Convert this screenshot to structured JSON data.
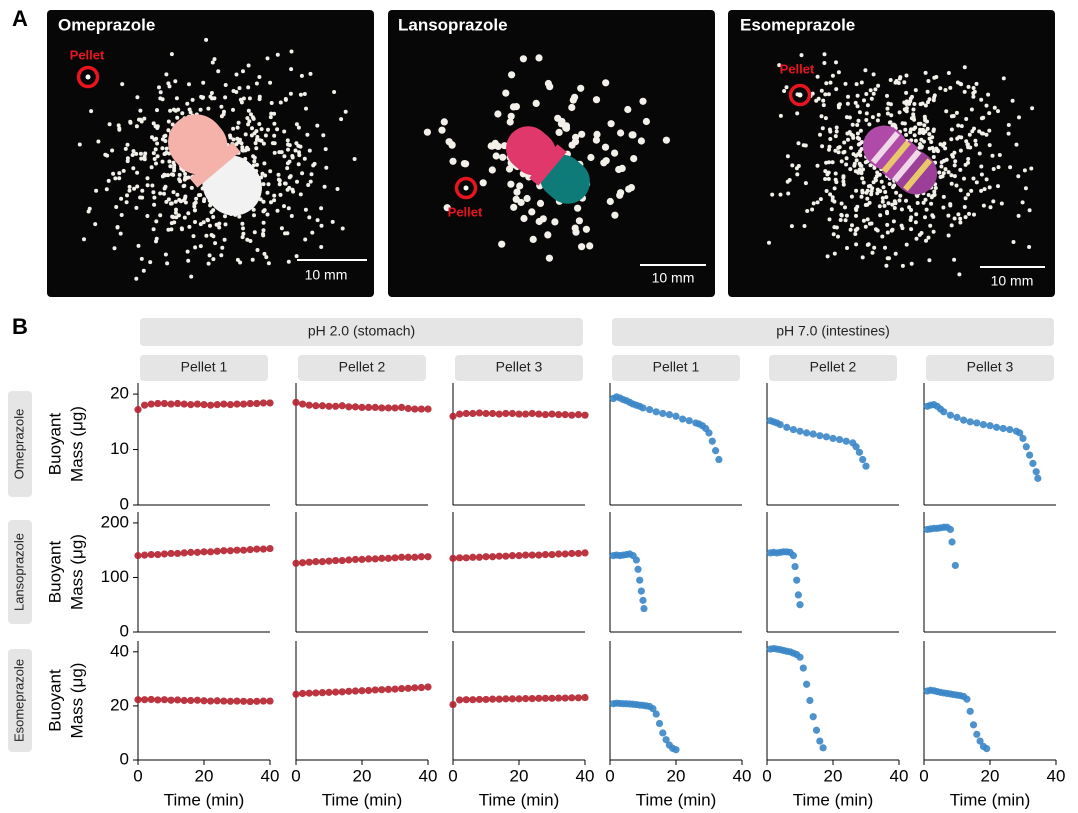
{
  "panel_labels": [
    "A",
    "B"
  ],
  "photos": [
    {
      "title": "Omeprazole",
      "marker": "Pellet",
      "scale_bar": "10 mm"
    },
    {
      "title": "Lansoprazole",
      "marker": "Pellet",
      "scale_bar": "10 mm"
    },
    {
      "title": "Esomeprazole",
      "marker": "Pellet",
      "scale_bar": "10 mm"
    }
  ],
  "conditions": [
    {
      "label": "pH 2.0 (stomach)",
      "pellets": [
        "Pellet 1",
        "Pellet 2",
        "Pellet 3"
      ]
    },
    {
      "label": "pH 7.0 (intestines)",
      "pellets": [
        "Pellet 1",
        "Pellet 2",
        "Pellet 3"
      ]
    }
  ],
  "drugs": [
    "Omeprazole",
    "Lansoprazole",
    "Esomeprazole"
  ],
  "chart_data": [
    {
      "type": "scatter",
      "xlim": [
        0,
        40
      ],
      "ylim": [
        0,
        22
      ],
      "yticks": [
        0,
        10,
        20
      ],
      "ylabel": [
        "Buoyant",
        "Mass (μg)"
      ],
      "series": [
        {
          "color": "#b5202e",
          "x": [
            0,
            2,
            4,
            6,
            8,
            10,
            12,
            14,
            16,
            18,
            20,
            22,
            24,
            26,
            28,
            30,
            32,
            34,
            36,
            38,
            40
          ],
          "values": [
            17.2,
            18.0,
            18.2,
            18.3,
            18.3,
            18.2,
            18.3,
            18.2,
            18.1,
            18.2,
            18.1,
            18.0,
            18.1,
            18.2,
            18.1,
            18.2,
            18.2,
            18.3,
            18.3,
            18.4,
            18.4
          ]
        }
      ]
    },
    {
      "type": "scatter",
      "xlim": [
        0,
        40
      ],
      "ylim": [
        0,
        22
      ],
      "series": [
        {
          "color": "#b5202e",
          "x": [
            0,
            2,
            4,
            6,
            8,
            10,
            12,
            14,
            16,
            18,
            20,
            22,
            24,
            26,
            28,
            30,
            32,
            34,
            36,
            38,
            40
          ],
          "values": [
            18.5,
            18.2,
            18.0,
            17.9,
            17.9,
            17.8,
            17.8,
            17.9,
            17.7,
            17.7,
            17.6,
            17.6,
            17.6,
            17.5,
            17.5,
            17.5,
            17.6,
            17.4,
            17.3,
            17.3,
            17.3
          ]
        }
      ]
    },
    {
      "type": "scatter",
      "xlim": [
        0,
        40
      ],
      "ylim": [
        0,
        22
      ],
      "series": [
        {
          "color": "#b5202e",
          "x": [
            0,
            2,
            4,
            6,
            8,
            10,
            12,
            14,
            16,
            18,
            20,
            22,
            24,
            26,
            28,
            30,
            32,
            34,
            36,
            38,
            40
          ],
          "values": [
            16.0,
            16.4,
            16.5,
            16.5,
            16.6,
            16.5,
            16.5,
            16.4,
            16.5,
            16.5,
            16.4,
            16.4,
            16.5,
            16.4,
            16.3,
            16.4,
            16.3,
            16.3,
            16.2,
            16.3,
            16.2
          ]
        }
      ]
    },
    {
      "type": "scatter",
      "xlim": [
        0,
        40
      ],
      "ylim": [
        0,
        22
      ],
      "series": [
        {
          "color": "#3a86c8",
          "x": [
            1,
            2,
            3,
            4,
            5,
            6,
            7,
            8,
            9,
            10,
            12,
            14,
            16,
            18,
            20,
            22,
            24,
            26,
            27,
            28,
            29,
            30,
            31,
            32,
            33
          ],
          "values": [
            19.2,
            19.5,
            19.3,
            19.0,
            18.8,
            18.5,
            18.2,
            18.0,
            17.8,
            17.5,
            17.2,
            16.8,
            16.5,
            16.3,
            16.0,
            15.5,
            15.2,
            14.8,
            14.6,
            14.3,
            13.8,
            13.0,
            11.5,
            9.8,
            8.2
          ]
        }
      ]
    },
    {
      "type": "scatter",
      "xlim": [
        0,
        40
      ],
      "ylim": [
        0,
        22
      ],
      "series": [
        {
          "color": "#3a86c8",
          "x": [
            1,
            2,
            3,
            4,
            6,
            8,
            10,
            12,
            14,
            16,
            18,
            20,
            22,
            24,
            26,
            27,
            28,
            29,
            30
          ],
          "values": [
            15.2,
            15.0,
            14.8,
            14.5,
            14.0,
            13.6,
            13.3,
            13.0,
            12.8,
            12.5,
            12.3,
            12.0,
            11.8,
            11.5,
            11.2,
            10.5,
            9.5,
            8.2,
            7.0
          ]
        }
      ]
    },
    {
      "type": "scatter",
      "xlim": [
        0,
        40
      ],
      "ylim": [
        0,
        22
      ],
      "series": [
        {
          "color": "#3a86c8",
          "x": [
            1,
            2,
            3,
            4,
            5,
            6,
            8,
            10,
            12,
            14,
            16,
            18,
            20,
            22,
            24,
            26,
            28,
            29,
            30,
            31,
            32,
            33,
            34,
            34.5
          ],
          "values": [
            17.8,
            18.0,
            18.1,
            17.8,
            17.3,
            16.8,
            16.2,
            15.8,
            15.3,
            15.0,
            14.8,
            14.5,
            14.3,
            14.0,
            13.8,
            13.6,
            13.3,
            13.0,
            12.0,
            10.5,
            9.0,
            7.5,
            6.0,
            4.8
          ]
        }
      ]
    },
    {
      "type": "scatter",
      "xlim": [
        0,
        40
      ],
      "ylim": [
        0,
        220
      ],
      "yticks": [
        0,
        100,
        200
      ],
      "ylabel": [
        "Buoyant",
        "Mass (μg)"
      ],
      "series": [
        {
          "color": "#b5202e",
          "x": [
            0,
            2,
            4,
            6,
            8,
            10,
            12,
            14,
            16,
            18,
            20,
            22,
            24,
            26,
            28,
            30,
            32,
            34,
            36,
            38,
            40
          ],
          "values": [
            140,
            141,
            142,
            142,
            143,
            144,
            144,
            145,
            146,
            146,
            147,
            147,
            148,
            149,
            149,
            150,
            150,
            151,
            152,
            152,
            153
          ]
        }
      ]
    },
    {
      "type": "scatter",
      "xlim": [
        0,
        40
      ],
      "ylim": [
        0,
        220
      ],
      "series": [
        {
          "color": "#b5202e",
          "x": [
            0,
            2,
            4,
            6,
            8,
            10,
            12,
            14,
            16,
            18,
            20,
            22,
            24,
            26,
            28,
            30,
            32,
            34,
            36,
            38,
            40
          ],
          "values": [
            126,
            127,
            128,
            129,
            129,
            130,
            131,
            131,
            132,
            133,
            133,
            134,
            134,
            135,
            135,
            136,
            137,
            137,
            137,
            138,
            138
          ]
        }
      ]
    },
    {
      "type": "scatter",
      "xlim": [
        0,
        40
      ],
      "ylim": [
        0,
        220
      ],
      "series": [
        {
          "color": "#b5202e",
          "x": [
            0,
            2,
            4,
            6,
            8,
            10,
            12,
            14,
            16,
            18,
            20,
            22,
            24,
            26,
            28,
            30,
            32,
            34,
            36,
            38,
            40
          ],
          "values": [
            135,
            136,
            136,
            137,
            137,
            138,
            138,
            139,
            139,
            140,
            140,
            141,
            141,
            141,
            142,
            142,
            143,
            143,
            144,
            144,
            145
          ]
        }
      ]
    },
    {
      "type": "scatter",
      "xlim": [
        0,
        40
      ],
      "ylim": [
        0,
        220
      ],
      "series": [
        {
          "color": "#3a86c8",
          "x": [
            1,
            2,
            3,
            4,
            5,
            6,
            7,
            8,
            8.5,
            9,
            9.5,
            10,
            10.3
          ],
          "values": [
            140,
            141,
            140,
            141,
            142,
            143,
            140,
            132,
            115,
            95,
            75,
            58,
            43
          ]
        }
      ]
    },
    {
      "type": "scatter",
      "xlim": [
        0,
        40
      ],
      "ylim": [
        0,
        220
      ],
      "series": [
        {
          "color": "#3a86c8",
          "x": [
            1,
            2,
            3,
            4,
            5,
            6,
            7,
            8,
            8.5,
            9,
            9.5,
            10
          ],
          "values": [
            145,
            146,
            145,
            146,
            147,
            147,
            146,
            140,
            120,
            95,
            68,
            50
          ]
        }
      ]
    },
    {
      "type": "scatter",
      "xlim": [
        0,
        40
      ],
      "ylim": [
        0,
        220
      ],
      "series": [
        {
          "color": "#3a86c8",
          "x": [
            1,
            2,
            3,
            4,
            5,
            6,
            7,
            8,
            8.5,
            9.5
          ],
          "values": [
            188,
            189,
            190,
            190,
            191,
            192,
            192,
            188,
            165,
            122
          ]
        }
      ]
    },
    {
      "type": "scatter",
      "xlim": [
        0,
        40
      ],
      "ylim": [
        0,
        44
      ],
      "yticks": [
        0,
        20,
        40
      ],
      "xticks": [
        0,
        20,
        40
      ],
      "ylabel": [
        "Buoyant",
        "Mass (μg)"
      ],
      "xlabel": "Time (min)",
      "series": [
        {
          "color": "#b5202e",
          "x": [
            0,
            2,
            4,
            6,
            8,
            10,
            12,
            14,
            16,
            18,
            20,
            22,
            24,
            26,
            28,
            30,
            32,
            34,
            36,
            38,
            40
          ],
          "values": [
            22.3,
            22.3,
            22.4,
            22.2,
            22.3,
            22.1,
            22.2,
            22.0,
            22.0,
            22.1,
            21.9,
            21.8,
            21.9,
            21.8,
            21.7,
            21.8,
            21.7,
            21.6,
            21.7,
            21.8,
            21.8
          ]
        }
      ]
    },
    {
      "type": "scatter",
      "xlim": [
        0,
        40
      ],
      "ylim": [
        0,
        44
      ],
      "xticks": [
        0,
        20,
        40
      ],
      "xlabel": "Time (min)",
      "series": [
        {
          "color": "#b5202e",
          "x": [
            0,
            2,
            4,
            6,
            8,
            10,
            12,
            14,
            16,
            18,
            20,
            22,
            24,
            26,
            28,
            30,
            32,
            34,
            36,
            38,
            40
          ],
          "values": [
            24.3,
            24.6,
            24.7,
            24.8,
            24.9,
            25.0,
            25.1,
            25.2,
            25.4,
            25.5,
            25.6,
            25.7,
            25.9,
            26.0,
            26.1,
            26.2,
            26.4,
            26.5,
            26.7,
            26.8,
            27.0
          ]
        }
      ]
    },
    {
      "type": "scatter",
      "xlim": [
        0,
        40
      ],
      "ylim": [
        0,
        44
      ],
      "xticks": [
        0,
        20,
        40
      ],
      "xlabel": "Time (min)",
      "series": [
        {
          "color": "#b5202e",
          "x": [
            0,
            2,
            4,
            6,
            8,
            10,
            12,
            14,
            16,
            18,
            20,
            22,
            24,
            26,
            28,
            30,
            32,
            34,
            36,
            38,
            40
          ],
          "values": [
            20.5,
            22.2,
            22.3,
            22.3,
            22.4,
            22.4,
            22.5,
            22.5,
            22.6,
            22.6,
            22.6,
            22.7,
            22.7,
            22.8,
            22.8,
            22.8,
            22.9,
            22.9,
            23.0,
            23.0,
            23.1
          ]
        }
      ]
    },
    {
      "type": "scatter",
      "xlim": [
        0,
        40
      ],
      "ylim": [
        0,
        44
      ],
      "xticks": [
        0,
        20,
        40
      ],
      "xlabel": "Time (min)",
      "series": [
        {
          "color": "#3a86c8",
          "x": [
            1,
            2,
            3,
            4,
            5,
            6,
            7,
            8,
            9,
            10,
            11,
            12,
            13,
            14,
            15,
            16,
            17,
            18,
            19,
            20
          ],
          "values": [
            20.8,
            21.0,
            20.9,
            20.8,
            20.8,
            20.7,
            20.6,
            20.5,
            20.3,
            20.2,
            20.0,
            19.8,
            19.0,
            17.0,
            13.5,
            10.0,
            7.5,
            5.5,
            4.3,
            3.8
          ]
        }
      ]
    },
    {
      "type": "scatter",
      "xlim": [
        0,
        40
      ],
      "ylim": [
        0,
        44
      ],
      "xticks": [
        0,
        20,
        40
      ],
      "xlabel": "Time (min)",
      "series": [
        {
          "color": "#3a86c8",
          "x": [
            1,
            2,
            3,
            4,
            5,
            6,
            7,
            8,
            9,
            10,
            11,
            12,
            13,
            14,
            15,
            16,
            17
          ],
          "values": [
            41.0,
            41.2,
            41.0,
            40.8,
            40.5,
            40.2,
            40.0,
            39.5,
            39.0,
            38.0,
            34.0,
            28.0,
            22.0,
            16.0,
            11.0,
            7.0,
            4.5
          ]
        }
      ]
    },
    {
      "type": "scatter",
      "xlim": [
        0,
        40
      ],
      "ylim": [
        0,
        44
      ],
      "xticks": [
        0,
        20,
        40
      ],
      "xlabel": "Time (min)",
      "series": [
        {
          "color": "#3a86c8",
          "x": [
            1,
            2,
            3,
            4,
            5,
            6,
            7,
            8,
            9,
            10,
            11,
            12,
            13,
            14,
            15,
            16,
            17,
            18,
            19
          ],
          "values": [
            25.5,
            25.8,
            25.6,
            25.3,
            25.0,
            24.8,
            24.6,
            24.4,
            24.2,
            24.0,
            23.8,
            23.5,
            22.5,
            18.0,
            13.0,
            9.5,
            7.0,
            5.0,
            4.2
          ]
        }
      ]
    }
  ]
}
